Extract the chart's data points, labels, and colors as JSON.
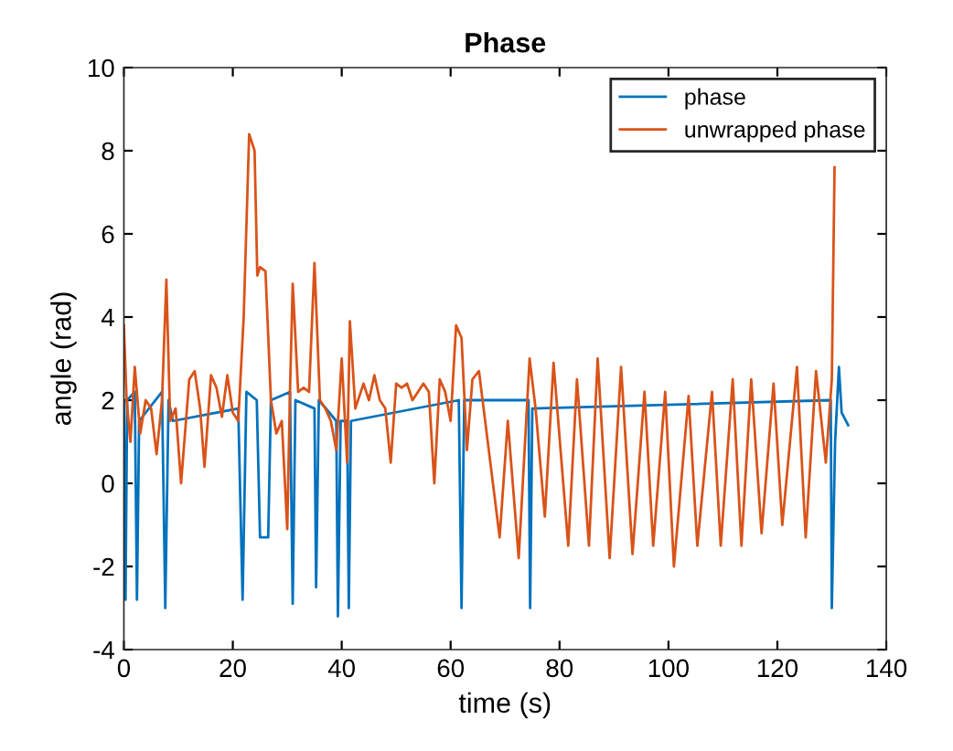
{
  "chart_data": {
    "type": "line",
    "title": "Phase",
    "xlabel": "time (s)",
    "ylabel": "angle (rad)",
    "xlim": [
      0,
      140
    ],
    "ylim": [
      -4,
      10
    ],
    "xticks": [
      0,
      20,
      40,
      60,
      80,
      100,
      120,
      140
    ],
    "yticks": [
      -4,
      -2,
      0,
      2,
      4,
      6,
      8,
      10
    ],
    "grid": false,
    "legend": "top right",
    "series": [
      {
        "name": "phase",
        "color": "#0072bd",
        "x": [
          0,
          0.3,
          0.6,
          2,
          2.4,
          2.8,
          7,
          7.6,
          8.2,
          9,
          21,
          21.8,
          22.5,
          24.4,
          25,
          26.5,
          27,
          30.5,
          31,
          31.5,
          35,
          35.3,
          35.8,
          39,
          39.3,
          39.8,
          41,
          41.3,
          41.7,
          61.5,
          62,
          62.5,
          74.3,
          74.6,
          75,
          129.8,
          130,
          130.6,
          131.3,
          131.8,
          133
        ],
        "values": [
          2.0,
          -2.8,
          2.0,
          2.2,
          -2.8,
          1.5,
          2.2,
          -3.0,
          2.0,
          1.5,
          1.8,
          -2.8,
          2.2,
          2.0,
          -1.3,
          -1.3,
          2.0,
          2.2,
          -2.9,
          2.0,
          1.8,
          -2.5,
          2.0,
          1.5,
          -3.2,
          1.5,
          1.5,
          -3.0,
          1.5,
          2.0,
          -3.0,
          2.0,
          2.0,
          -3.0,
          1.8,
          2.0,
          -3.0,
          1.0,
          2.8,
          1.7,
          1.4
        ]
      },
      {
        "name": "unwrapped phase",
        "color": "#d95319",
        "x": [
          0,
          0.5,
          1.2,
          2,
          3,
          4,
          5,
          6,
          7,
          7.8,
          8.5,
          9.5,
          10.5,
          12,
          13,
          14,
          14.8,
          16,
          17,
          18,
          19,
          20,
          21,
          22,
          23,
          24,
          24.5,
          25,
          26,
          27,
          28,
          29,
          30,
          30.5,
          31,
          32,
          33,
          34,
          35,
          36,
          37,
          38,
          39,
          40,
          41,
          41.5,
          42.5,
          44,
          45,
          46,
          47,
          48,
          49,
          50,
          51,
          52,
          53,
          54,
          55,
          56,
          57,
          58,
          59,
          60,
          61,
          62,
          63,
          64,
          65.2,
          69,
          70.5,
          72.5,
          74.5,
          75.6,
          77.3,
          78.9,
          81.6,
          83.2,
          85.4,
          87,
          89.2,
          91.3,
          93.4,
          95.6,
          97.2,
          99.4,
          101,
          103.7,
          105.3,
          108,
          109.6,
          111.8,
          113.4,
          115.2,
          117.1,
          119.3,
          120.9,
          123.6,
          125.2,
          127.1,
          128.9,
          130,
          130.5
        ],
        "values": [
          3.8,
          2.0,
          1.0,
          2.8,
          1.2,
          2.0,
          1.8,
          0.7,
          2.0,
          4.9,
          1.5,
          1.8,
          0.0,
          2.5,
          2.7,
          1.8,
          0.4,
          2.6,
          2.3,
          1.6,
          2.6,
          1.7,
          1.5,
          4.0,
          8.4,
          8.0,
          5.0,
          5.2,
          5.1,
          2.0,
          1.2,
          1.5,
          -1.1,
          2.2,
          4.8,
          2.2,
          2.3,
          2.2,
          5.3,
          2.0,
          1.8,
          1.5,
          0.8,
          3.0,
          0.5,
          3.9,
          1.8,
          2.4,
          2.0,
          2.6,
          2.0,
          1.8,
          0.5,
          2.4,
          2.3,
          2.4,
          2.0,
          2.2,
          2.4,
          2.2,
          0.0,
          2.5,
          2.2,
          1.5,
          3.8,
          3.5,
          0.8,
          2.5,
          2.7,
          -1.3,
          1.5,
          -1.8,
          3.0,
          1.8,
          -0.8,
          2.9,
          -1.5,
          2.5,
          -1.5,
          3.0,
          -1.8,
          2.8,
          -1.7,
          2.2,
          -1.5,
          2.2,
          -2.0,
          2.1,
          -1.5,
          2.2,
          -1.5,
          2.5,
          -1.5,
          2.5,
          -1.2,
          2.4,
          -1.0,
          2.8,
          -1.3,
          2.7,
          0.5,
          2.5,
          7.6
        ]
      }
    ]
  }
}
